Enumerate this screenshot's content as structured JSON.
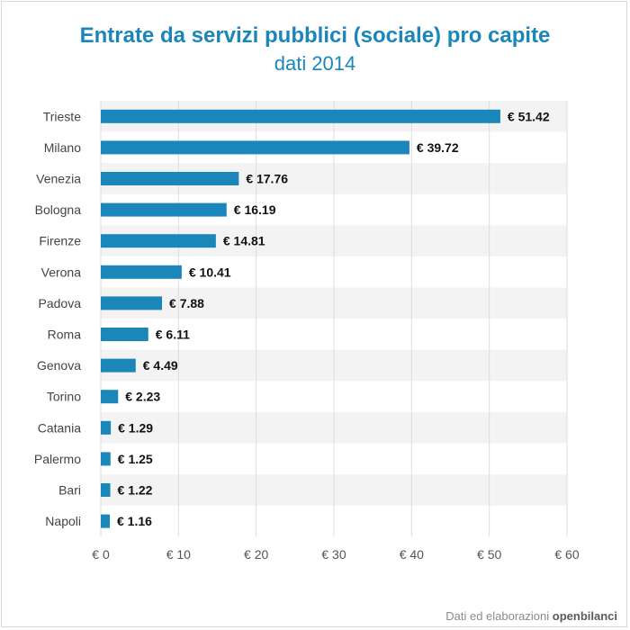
{
  "title": "Entrate da servizi pubblici (sociale) pro capite",
  "subtitle": "dati 2014",
  "credit": {
    "prefix": "Dati ed elaborazioni",
    "brand": "openbilanci"
  },
  "colors": {
    "bar": "#1a86b9",
    "title": "#1a86b9",
    "band": "#f3f3f3",
    "grid": "#dddddd"
  },
  "chart_data": {
    "type": "bar",
    "orientation": "horizontal",
    "title": "Entrate da servizi pubblici (sociale) pro capite",
    "subtitle": "dati 2014",
    "categories": [
      "Trieste",
      "Milano",
      "Venezia",
      "Bologna",
      "Firenze",
      "Verona",
      "Padova",
      "Roma",
      "Genova",
      "Torino",
      "Catania",
      "Palermo",
      "Bari",
      "Napoli"
    ],
    "values": [
      51.42,
      39.72,
      17.76,
      16.19,
      14.81,
      10.41,
      7.88,
      6.11,
      4.49,
      2.23,
      1.29,
      1.25,
      1.22,
      1.16
    ],
    "value_labels": [
      "€ 51.42",
      "€ 39.72",
      "€ 17.76",
      "€ 16.19",
      "€ 14.81",
      "€ 10.41",
      "€ 7.88",
      "€ 6.11",
      "€ 4.49",
      "€ 2.23",
      "€ 1.29",
      "€ 1.25",
      "€ 1.22",
      "€ 1.16"
    ],
    "xticks": [
      "€ 0",
      "€ 10",
      "€ 20",
      "€ 30",
      "€ 40",
      "€ 50",
      "€ 60"
    ],
    "xtick_values": [
      0,
      10,
      20,
      30,
      40,
      50,
      60
    ],
    "xlim": [
      0,
      60
    ],
    "xlabel": "",
    "ylabel": "",
    "grid": true,
    "legend": "none"
  }
}
